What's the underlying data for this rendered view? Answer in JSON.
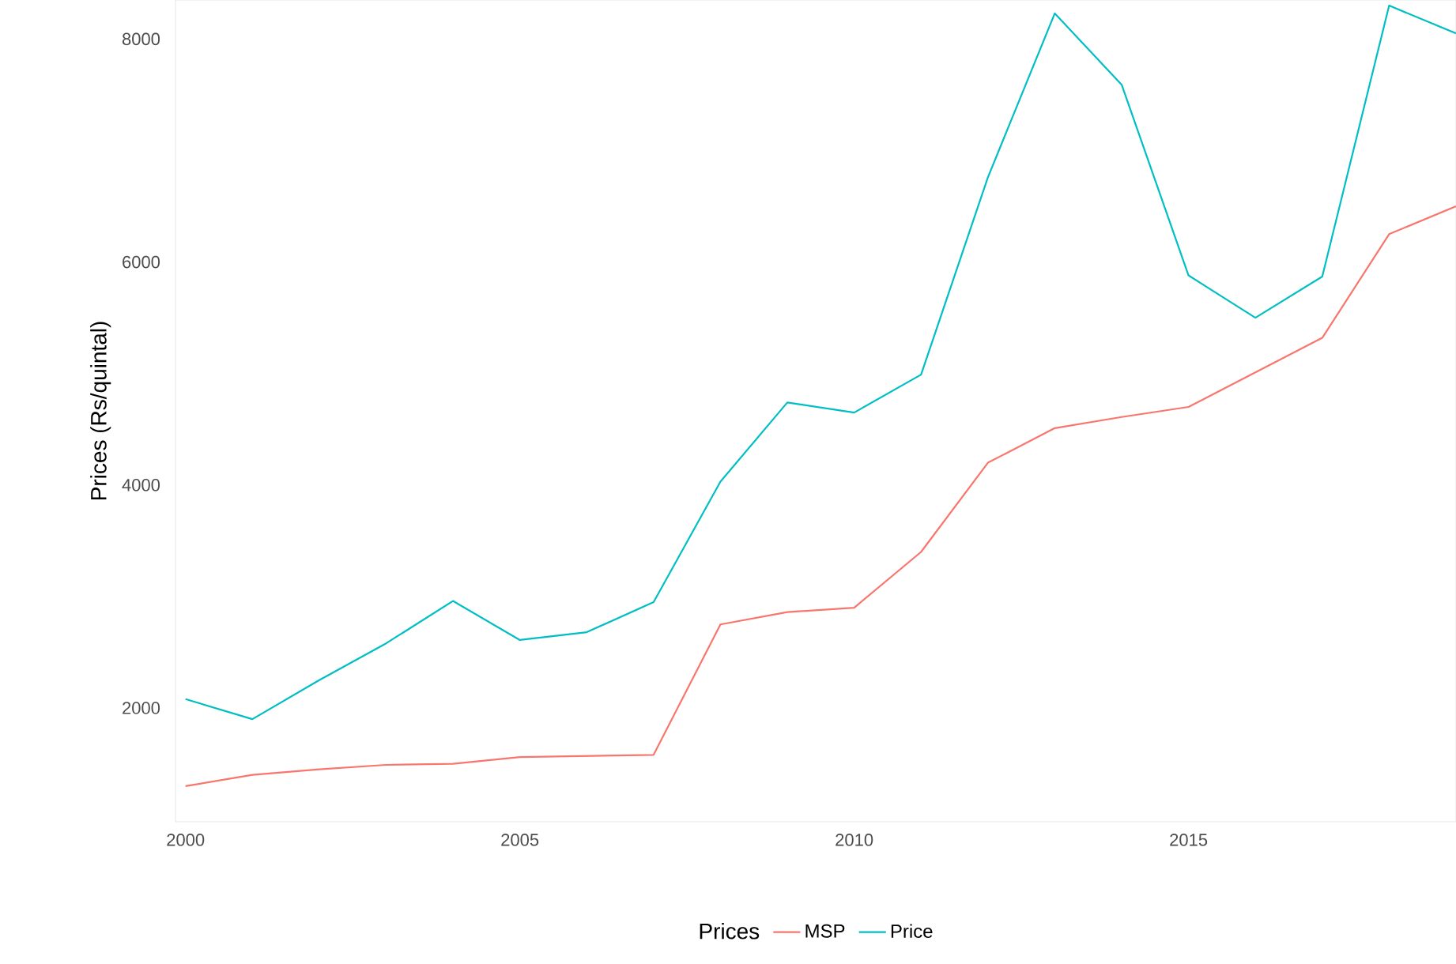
{
  "chart_data": {
    "type": "line",
    "ylabel": "Prices (Rs/quintal)",
    "legend_title": "Prices",
    "x": [
      2000,
      2001,
      2002,
      2003,
      2004,
      2005,
      2006,
      2007,
      2008,
      2009,
      2010,
      2011,
      2012,
      2013,
      2014,
      2015,
      2016,
      2017,
      2018,
      2019
    ],
    "series": [
      {
        "name": "MSP",
        "color": "#f8766d",
        "values": [
          1300,
          1400,
          1450,
          1490,
          1500,
          1560,
          1570,
          1580,
          2750,
          2860,
          2900,
          3400,
          4200,
          4510,
          4610,
          4700,
          5010,
          5320,
          6250,
          6500
        ]
      },
      {
        "name": "Price",
        "color": "#00bfc4",
        "values": [
          2080,
          1900,
          2250,
          2580,
          2960,
          2610,
          2680,
          2950,
          4030,
          4740,
          4650,
          4990,
          6760,
          8230,
          7590,
          5880,
          5500,
          5870,
          8300,
          8050
        ]
      }
    ],
    "xlim": [
      1999.85,
      2019
    ],
    "ylim": [
      980,
      8350
    ],
    "xticks": [
      2000,
      2005,
      2010,
      2015
    ],
    "yticks": [
      2000,
      4000,
      6000,
      8000
    ],
    "grid": false,
    "legend": "bottom",
    "line_style": "solid",
    "marker": "none"
  }
}
